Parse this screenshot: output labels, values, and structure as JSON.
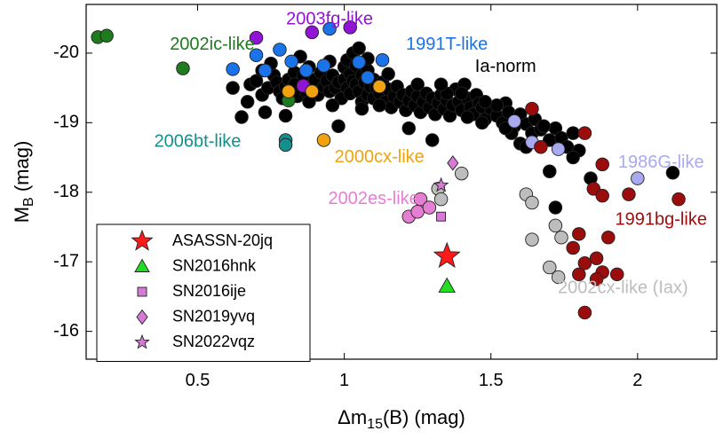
{
  "chart_data": {
    "type": "scatter",
    "title": "",
    "xlabel": "Δm15(B) (mag)",
    "ylabel": "MB (mag)",
    "xlim": [
      0.12,
      2.27
    ],
    "ylim": [
      -20.7,
      -15.6
    ],
    "y_inverted": true,
    "grid": false,
    "x_ticks": [
      {
        "value": 0.5,
        "label": "0.5"
      },
      {
        "value": 1.0,
        "label": "1"
      },
      {
        "value": 1.5,
        "label": "1.5"
      },
      {
        "value": 2.0,
        "label": "2"
      }
    ],
    "y_ticks": [
      {
        "value": -20,
        "label": "-20"
      },
      {
        "value": -19,
        "label": "-19"
      },
      {
        "value": -18,
        "label": "-18"
      },
      {
        "value": -17,
        "label": "-17"
      },
      {
        "value": -16,
        "label": "-16"
      }
    ],
    "legend_position": "bottom-left",
    "colors": {
      "ia_norm": "#000000",
      "c2003fg": "#9013D6",
      "c1991T": "#1A73E8",
      "c2002ic": "#1E7B1E",
      "c2006bt": "#13908E",
      "c2000cx": "#F2A20E",
      "c2002es": "#E67FD3",
      "c1986G": "#A9A9F2",
      "c1991bg": "#9B0D0D",
      "c2002cx": "#BDBDBD",
      "asassn": "#FF1A1A",
      "sn2016hnk": "#22DD22",
      "violet": "#D67AD6"
    },
    "series": [
      {
        "name": "Ia-norm",
        "color": "#000000",
        "marker": "circle",
        "points": [
          [
            0.62,
            -19.5
          ],
          [
            0.67,
            -19.3
          ],
          [
            0.68,
            -19.55
          ],
          [
            0.7,
            -19.6
          ],
          [
            0.72,
            -19.4
          ],
          [
            0.73,
            -19.15
          ],
          [
            0.74,
            -19.5
          ],
          [
            0.76,
            -19.68
          ],
          [
            0.77,
            -19.58
          ],
          [
            0.78,
            -19.45
          ],
          [
            0.79,
            -19.35
          ],
          [
            0.8,
            -19.52
          ],
          [
            0.81,
            -19.62
          ],
          [
            0.82,
            -19.48
          ],
          [
            0.83,
            -19.72
          ],
          [
            0.84,
            -19.38
          ],
          [
            0.85,
            -19.58
          ],
          [
            0.86,
            -19.68
          ],
          [
            0.87,
            -19.45
          ],
          [
            0.88,
            -19.8
          ],
          [
            0.89,
            -19.55
          ],
          [
            0.9,
            -19.62
          ],
          [
            0.91,
            -19.4
          ],
          [
            0.92,
            -19.72
          ],
          [
            0.93,
            -19.52
          ],
          [
            0.94,
            -19.6
          ],
          [
            0.95,
            -19.45
          ],
          [
            0.96,
            -19.68
          ],
          [
            0.97,
            -19.5
          ],
          [
            0.98,
            -19.58
          ],
          [
            0.99,
            -19.35
          ],
          [
            1.0,
            -19.62
          ],
          [
            1.0,
            -19.8
          ],
          [
            1.01,
            -19.9
          ],
          [
            1.01,
            -19.5
          ],
          [
            1.02,
            -19.7
          ],
          [
            1.02,
            -19.42
          ],
          [
            1.03,
            -20.0
          ],
          [
            1.03,
            -19.6
          ],
          [
            1.04,
            -19.82
          ],
          [
            1.04,
            -19.55
          ],
          [
            1.05,
            -20.07
          ],
          [
            1.05,
            -19.45
          ],
          [
            1.06,
            -19.68
          ],
          [
            1.06,
            -19.3
          ],
          [
            1.07,
            -19.58
          ],
          [
            1.08,
            -19.75
          ],
          [
            1.08,
            -19.4
          ],
          [
            1.09,
            -19.52
          ],
          [
            1.1,
            -19.62
          ],
          [
            1.1,
            -19.35
          ],
          [
            1.11,
            -19.5
          ],
          [
            1.12,
            -19.42
          ],
          [
            1.13,
            -19.58
          ],
          [
            1.14,
            -19.3
          ],
          [
            1.15,
            -19.48
          ],
          [
            1.16,
            -19.22
          ],
          [
            1.17,
            -19.38
          ],
          [
            1.18,
            -19.52
          ],
          [
            1.19,
            -19.3
          ],
          [
            1.2,
            -19.4
          ],
          [
            1.21,
            -19.18
          ],
          [
            1.22,
            -19.32
          ],
          [
            1.23,
            -19.45
          ],
          [
            1.24,
            -19.25
          ],
          [
            1.25,
            -19.38
          ],
          [
            1.26,
            -19.15
          ],
          [
            1.27,
            -19.3
          ],
          [
            1.28,
            -19.42
          ],
          [
            1.29,
            -19.22
          ],
          [
            1.3,
            -19.35
          ],
          [
            1.31,
            -19.12
          ],
          [
            1.32,
            -19.28
          ],
          [
            1.33,
            -19.4
          ],
          [
            1.34,
            -19.2
          ],
          [
            1.35,
            -19.32
          ],
          [
            1.36,
            -19.1
          ],
          [
            1.37,
            -19.25
          ],
          [
            1.38,
            -19.48
          ],
          [
            1.39,
            -19.3
          ],
          [
            1.4,
            -19.18
          ],
          [
            1.41,
            -19.55
          ],
          [
            1.42,
            -19.35
          ],
          [
            1.43,
            -19.22
          ],
          [
            1.44,
            -19.12
          ],
          [
            1.45,
            -19.4
          ],
          [
            1.46,
            -19.28
          ],
          [
            1.47,
            -19.22
          ],
          [
            1.48,
            -19.05
          ],
          [
            1.5,
            -19.2
          ],
          [
            1.52,
            -19.1
          ],
          [
            1.54,
            -19.0
          ],
          [
            1.55,
            -19.28
          ],
          [
            1.56,
            -19.15
          ],
          [
            1.58,
            -18.95
          ],
          [
            1.6,
            -19.12
          ],
          [
            1.62,
            -18.98
          ],
          [
            1.64,
            -18.85
          ],
          [
            1.65,
            -19.05
          ],
          [
            1.67,
            -18.9
          ],
          [
            1.7,
            -18.75
          ],
          [
            1.72,
            -18.92
          ],
          [
            1.74,
            -18.78
          ],
          [
            1.76,
            -18.65
          ],
          [
            1.78,
            -18.85
          ],
          [
            1.8,
            -18.6
          ],
          [
            0.65,
            -19.08
          ],
          [
            0.8,
            -19.1
          ],
          [
            0.98,
            -18.95
          ],
          [
            1.22,
            -18.92
          ],
          [
            1.3,
            -18.75
          ],
          [
            1.47,
            -19.0
          ],
          [
            1.6,
            -18.7
          ],
          [
            1.7,
            -18.3
          ],
          [
            1.78,
            -18.5
          ],
          [
            1.84,
            -18.2
          ],
          [
            1.72,
            -17.78
          ],
          [
            2.12,
            -18.28
          ],
          [
            0.75,
            -19.85
          ],
          [
            0.85,
            -19.95
          ],
          [
            0.95,
            -19.88
          ],
          [
            1.08,
            -19.92
          ],
          [
            1.15,
            -19.7
          ],
          [
            1.12,
            -19.25
          ],
          [
            0.72,
            -19.75
          ],
          [
            0.83,
            -19.55
          ],
          [
            0.88,
            -19.3
          ],
          [
            0.96,
            -19.25
          ],
          [
            1.06,
            -19.2
          ],
          [
            1.25,
            -19.55
          ],
          [
            1.35,
            -19.42
          ],
          [
            1.4,
            -19.42
          ],
          [
            1.52,
            -19.25
          ],
          [
            1.57,
            -18.85
          ],
          [
            1.68,
            -18.95
          ],
          [
            1.62,
            -18.65
          ],
          [
            1.48,
            -19.3
          ],
          [
            1.55,
            -18.92
          ],
          [
            1.42,
            -19.08
          ],
          [
            1.33,
            -19.55
          ]
        ]
      },
      {
        "name": "2003fg-like",
        "color": "#9013D6",
        "marker": "circle",
        "points": [
          [
            0.7,
            -20.22
          ],
          [
            0.89,
            -20.3
          ],
          [
            1.02,
            -20.37
          ],
          [
            0.86,
            -19.53
          ]
        ]
      },
      {
        "name": "1991T-like",
        "color": "#1A73E8",
        "marker": "circle",
        "points": [
          [
            0.62,
            -19.77
          ],
          [
            0.7,
            -19.97
          ],
          [
            0.73,
            -19.75
          ],
          [
            0.78,
            -20.05
          ],
          [
            0.82,
            -19.88
          ],
          [
            0.87,
            -19.75
          ],
          [
            0.93,
            -19.82
          ],
          [
            1.05,
            -19.87
          ],
          [
            1.08,
            -19.65
          ],
          [
            1.13,
            -19.9
          ],
          [
            0.95,
            -20.35
          ]
        ]
      },
      {
        "name": "2002ic-like",
        "color": "#1E7B1E",
        "marker": "circle",
        "points": [
          [
            0.16,
            -20.23
          ],
          [
            0.19,
            -20.25
          ],
          [
            0.45,
            -19.78
          ],
          [
            0.81,
            -19.32
          ]
        ]
      },
      {
        "name": "2006bt-like",
        "color": "#13908E",
        "marker": "circle",
        "points": [
          [
            0.8,
            -18.75
          ],
          [
            0.8,
            -18.68
          ]
        ]
      },
      {
        "name": "2000cx-like",
        "color": "#F2A20E",
        "marker": "circle",
        "points": [
          [
            0.81,
            -19.45
          ],
          [
            0.89,
            -19.45
          ],
          [
            0.93,
            -18.75
          ],
          [
            1.12,
            -19.52
          ]
        ]
      },
      {
        "name": "2002es-like",
        "color": "#E67FD3",
        "marker": "circle",
        "points": [
          [
            1.22,
            -17.65
          ],
          [
            1.26,
            -17.9
          ],
          [
            1.25,
            -17.72
          ],
          [
            1.29,
            -17.78
          ]
        ]
      },
      {
        "name": "1986G-like",
        "color": "#A9A9F2",
        "marker": "circle",
        "points": [
          [
            1.58,
            -19.02
          ],
          [
            1.64,
            -18.72
          ],
          [
            1.73,
            -18.62
          ],
          [
            2.0,
            -18.2
          ]
        ]
      },
      {
        "name": "1991bg-like",
        "color": "#9B0D0D",
        "marker": "circle",
        "points": [
          [
            1.64,
            -19.2
          ],
          [
            1.67,
            -18.65
          ],
          [
            1.82,
            -18.85
          ],
          [
            1.88,
            -18.4
          ],
          [
            1.85,
            -18.05
          ],
          [
            1.88,
            -17.95
          ],
          [
            1.97,
            -17.97
          ],
          [
            2.14,
            -17.9
          ],
          [
            1.8,
            -17.4
          ],
          [
            1.9,
            -17.35
          ],
          [
            1.78,
            -17.2
          ],
          [
            1.82,
            -16.98
          ],
          [
            1.86,
            -17.05
          ],
          [
            1.88,
            -16.85
          ],
          [
            1.93,
            -16.82
          ],
          [
            1.8,
            -16.82
          ],
          [
            1.86,
            -16.75
          ],
          [
            1.82,
            -16.27
          ]
        ]
      },
      {
        "name": "2002cx-like (Iax)",
        "color": "#BDBDBD",
        "marker": "circle",
        "points": [
          [
            1.32,
            -18.05
          ],
          [
            1.33,
            -17.9
          ],
          [
            1.4,
            -18.27
          ],
          [
            1.62,
            -17.97
          ],
          [
            1.64,
            -17.85
          ],
          [
            1.72,
            -17.52
          ],
          [
            1.64,
            -17.32
          ],
          [
            1.74,
            -17.35
          ],
          [
            1.7,
            -16.92
          ],
          [
            1.73,
            -16.78
          ]
        ]
      },
      {
        "name": "ASASSN-20jq",
        "color": "#FF1A1A",
        "marker": "star",
        "legend": true,
        "points": [
          [
            1.35,
            -17.08
          ]
        ]
      },
      {
        "name": "SN2016hnk",
        "color": "#22DD22",
        "marker": "triangle",
        "legend": true,
        "points": [
          [
            1.35,
            -16.65
          ]
        ]
      },
      {
        "name": "SN2016ije",
        "color": "#D67AD6",
        "marker": "square",
        "legend": true,
        "points": [
          [
            1.33,
            -17.65
          ]
        ]
      },
      {
        "name": "SN2019yvq",
        "color": "#D67AD6",
        "marker": "diamond",
        "legend": true,
        "points": [
          [
            1.37,
            -18.42
          ]
        ]
      },
      {
        "name": "SN2022vqz",
        "color": "#D67AD6",
        "marker": "pentagram",
        "legend": true,
        "points": [
          [
            1.33,
            -18.1
          ]
        ]
      }
    ],
    "annotations": [
      {
        "text": "2003fg-like",
        "color": "#9013D6",
        "x": 0.95,
        "y": -20.48
      },
      {
        "text": "2002ic-like",
        "color": "#1E7B1E",
        "x": 0.55,
        "y": -20.12
      },
      {
        "text": "1991T-like",
        "color": "#1A73E8",
        "x": 1.35,
        "y": -20.12
      },
      {
        "text": "Ia-norm",
        "color": "#000000",
        "x": 1.55,
        "y": -19.8
      },
      {
        "text": "2006bt-like",
        "color": "#13908E",
        "x": 0.5,
        "y": -18.72
      },
      {
        "text": "2000cx-like",
        "color": "#F2A20E",
        "x": 1.12,
        "y": -18.5
      },
      {
        "text": "1986G-like",
        "color": "#A9A9F2",
        "x": 2.08,
        "y": -18.42
      },
      {
        "text": "2002es-like",
        "color": "#E67FD3",
        "x": 1.1,
        "y": -17.9
      },
      {
        "text": "1991bg-like",
        "color": "#9B0D0D",
        "x": 2.08,
        "y": -17.6
      },
      {
        "text": "2002cx-like (Iax)",
        "color": "#BDBDBD",
        "x": 1.95,
        "y": -16.62
      }
    ]
  }
}
